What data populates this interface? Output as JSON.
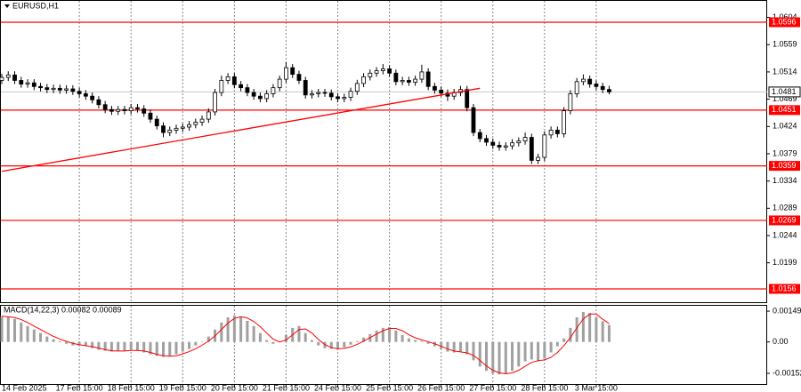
{
  "chart_data": [
    {
      "type": "candlestick",
      "title": "EURUSD,H1",
      "categories": [
        "14 Feb 2025",
        null,
        null,
        null,
        null,
        null,
        null,
        null,
        null,
        null,
        null,
        null,
        "17 Feb 15:00",
        null,
        null,
        null,
        null,
        null,
        null,
        null,
        "18 Feb 15:00",
        null,
        null,
        null,
        null,
        null,
        null,
        null,
        "19 Feb 15:00",
        null,
        null,
        null,
        null,
        null,
        null,
        null,
        "20 Feb 15:00",
        null,
        null,
        null,
        null,
        null,
        null,
        null,
        "21 Feb 15:00",
        null,
        null,
        null,
        null,
        null,
        null,
        null,
        "24 Feb 15:00",
        null,
        null,
        null,
        null,
        null,
        null,
        null,
        "25 Feb 15:00",
        null,
        null,
        null,
        null,
        null,
        null,
        null,
        "26 Feb 15:00",
        null,
        null,
        null,
        null,
        null,
        null,
        null,
        "27 Feb 15:00",
        null,
        null,
        null,
        null,
        null,
        null,
        null,
        "28 Feb 15:00",
        null,
        null,
        null,
        null,
        null,
        null,
        null,
        "3 Mar 15:00",
        null,
        null
      ],
      "open": [
        1.05,
        1.0505,
        1.0509,
        1.05,
        1.0494,
        1.0496,
        1.049,
        1.0488,
        1.0485,
        1.0487,
        1.0484,
        1.0486,
        1.0482,
        1.0478,
        1.0474,
        1.0468,
        1.046,
        1.0452,
        1.0449,
        1.0452,
        1.045,
        1.0455,
        1.0453,
        1.0446,
        1.0436,
        1.0425,
        1.0414,
        1.0418,
        1.0421,
        1.0423,
        1.0427,
        1.0431,
        1.0436,
        1.0448,
        1.048,
        1.05,
        1.0506,
        1.0493,
        1.0488,
        1.048,
        1.0474,
        1.047,
        1.0478,
        1.0488,
        1.0502,
        1.0521,
        1.051,
        1.05,
        1.0476,
        1.0478,
        1.048,
        1.0479,
        1.0473,
        1.047,
        1.0472,
        1.0482,
        1.0495,
        1.0506,
        1.0512,
        1.0516,
        1.0519,
        1.0512,
        1.0498,
        1.05,
        1.0497,
        1.0502,
        1.0514,
        1.049,
        1.0484,
        1.0479,
        1.0474,
        1.048,
        1.0485,
        1.0455,
        1.0414,
        1.0404,
        1.0398,
        1.0393,
        1.039,
        1.0392,
        1.0397,
        1.04,
        1.0406,
        1.0368,
        1.0373,
        1.041,
        1.0418,
        1.0412,
        1.045,
        1.0478,
        1.0498,
        1.0502,
        1.0494,
        1.049,
        1.0485
      ],
      "high": [
        1.0511,
        1.0515,
        1.0515,
        1.0506,
        1.0502,
        1.0502,
        1.0496,
        1.0494,
        1.0493,
        1.0493,
        1.0492,
        1.0492,
        1.0488,
        1.0484,
        1.048,
        1.0474,
        1.0466,
        1.0458,
        1.0458,
        1.0458,
        1.0461,
        1.0461,
        1.0459,
        1.0452,
        1.0442,
        1.0431,
        1.0424,
        1.0427,
        1.0429,
        1.0433,
        1.0437,
        1.0442,
        1.0454,
        1.0486,
        1.0508,
        1.0512,
        1.0512,
        1.0499,
        1.0494,
        1.0486,
        1.048,
        1.0484,
        1.0494,
        1.0508,
        1.053,
        1.0527,
        1.0516,
        1.0506,
        1.0484,
        1.0486,
        1.0486,
        1.0485,
        1.0479,
        1.0478,
        1.0488,
        1.0501,
        1.0512,
        1.0518,
        1.0522,
        1.0527,
        1.0525,
        1.0518,
        1.0506,
        1.0506,
        1.0508,
        1.0526,
        1.052,
        1.0496,
        1.049,
        1.0485,
        1.0486,
        1.0491,
        1.0491,
        1.0461,
        1.042,
        1.041,
        1.0404,
        1.0399,
        1.0398,
        1.0403,
        1.0406,
        1.0414,
        1.0412,
        1.0379,
        1.0416,
        1.0424,
        1.0424,
        1.0456,
        1.0484,
        1.0504,
        1.051,
        1.0508,
        1.05,
        1.0496,
        1.0491
      ],
      "low": [
        1.0494,
        1.0499,
        1.0494,
        1.0488,
        1.0488,
        1.0484,
        1.0482,
        1.0479,
        1.0479,
        1.0478,
        1.0478,
        1.0476,
        1.0472,
        1.0468,
        1.0462,
        1.0454,
        1.0446,
        1.0443,
        1.0443,
        1.0444,
        1.0444,
        1.0447,
        1.044,
        1.043,
        1.0419,
        1.0406,
        1.0408,
        1.0412,
        1.0415,
        1.0417,
        1.0421,
        1.0425,
        1.043,
        1.0442,
        1.0474,
        1.0494,
        1.0487,
        1.0482,
        1.0474,
        1.0468,
        1.0464,
        1.0464,
        1.0472,
        1.0482,
        1.0496,
        1.0504,
        1.0494,
        1.047,
        1.047,
        1.0472,
        1.0473,
        1.0467,
        1.0464,
        1.0464,
        1.0466,
        1.0476,
        1.0489,
        1.05,
        1.0506,
        1.051,
        1.0506,
        1.0492,
        1.0492,
        1.0491,
        1.0491,
        1.0496,
        1.0484,
        1.0478,
        1.0473,
        1.0466,
        1.0468,
        1.0474,
        1.0449,
        1.0408,
        1.0398,
        1.0392,
        1.0387,
        1.0384,
        1.0384,
        1.0386,
        1.0391,
        1.0394,
        1.0362,
        1.0362,
        1.0367,
        1.0404,
        1.0406,
        1.0406,
        1.0444,
        1.0472,
        1.0492,
        1.0488,
        1.0484,
        1.0479,
        1.0477
      ],
      "close": [
        1.0505,
        1.0509,
        1.05,
        1.0494,
        1.0496,
        1.049,
        1.0488,
        1.0485,
        1.0487,
        1.0484,
        1.0486,
        1.0482,
        1.0478,
        1.0474,
        1.0468,
        1.046,
        1.0452,
        1.0449,
        1.0452,
        1.045,
        1.0455,
        1.0453,
        1.0446,
        1.0436,
        1.0425,
        1.0414,
        1.0418,
        1.0421,
        1.0423,
        1.0427,
        1.0431,
        1.0436,
        1.0448,
        1.048,
        1.05,
        1.0506,
        1.0493,
        1.0488,
        1.048,
        1.0474,
        1.047,
        1.0478,
        1.0488,
        1.0502,
        1.0521,
        1.051,
        1.05,
        1.0476,
        1.0478,
        1.048,
        1.0479,
        1.0473,
        1.047,
        1.0472,
        1.0482,
        1.0495,
        1.0506,
        1.0512,
        1.0516,
        1.0519,
        1.0512,
        1.0498,
        1.05,
        1.0497,
        1.0502,
        1.0514,
        1.049,
        1.0484,
        1.0479,
        1.0474,
        1.048,
        1.0485,
        1.0455,
        1.0414,
        1.0404,
        1.0398,
        1.0393,
        1.039,
        1.0392,
        1.0397,
        1.04,
        1.0406,
        1.0368,
        1.0373,
        1.041,
        1.0418,
        1.0412,
        1.045,
        1.0478,
        1.0498,
        1.0502,
        1.0494,
        1.049,
        1.0485,
        1.0481
      ],
      "up_color": "#ffffff",
      "down_color": "#000000",
      "wick_color": "#000000",
      "ylim": [
        1.01325,
        1.06327
      ],
      "yticks": [
        1.0604,
        1.0559,
        1.0514,
        1.0469,
        1.0424,
        1.0379,
        1.0334,
        1.0289,
        1.0244,
        1.0199
      ],
      "levels": {
        "values": [
          1.0596,
          1.0451,
          1.0359,
          1.0269,
          1.0156
        ],
        "color": "#ff0000"
      },
      "last_price": 1.0481,
      "trendline": {
        "x": [
          0,
          74
        ],
        "y": [
          1.035,
          1.0487
        ],
        "color": "#ff0000"
      }
    },
    {
      "type": "macd",
      "title": "MACD(14,22,3) 0.00082 0.00089",
      "values": [
        0.00123,
        0.00119,
        0.00111,
        0.00094,
        0.00077,
        0.0006,
        0.00043,
        0.00026,
        0.00013,
        4e-05,
        -9e-05,
        -0.00017,
        -0.00017,
        -0.00021,
        -0.0003,
        -0.00038,
        -0.00043,
        -0.00047,
        -0.00043,
        -0.00043,
        -0.00038,
        -0.00043,
        -0.00051,
        -0.0006,
        -0.00068,
        -0.00072,
        -0.00068,
        -0.0006,
        -0.00047,
        -0.00034,
        -0.00017,
        2e-05,
        0.00026,
        0.0006,
        0.00094,
        0.00119,
        0.00128,
        0.00119,
        0.00102,
        0.00077,
        0.00043,
        9e-05,
        -9e-05,
        1e-05,
        0.00034,
        0.00068,
        0.00077,
        0.00043,
        9e-05,
        -0.00017,
        -0.0003,
        -0.00034,
        -0.00034,
        -0.00026,
        -0.00013,
        4e-05,
        0.00021,
        0.00038,
        0.00055,
        0.00068,
        0.00072,
        0.00055,
        0.00034,
        0.00017,
        9e-05,
        4e-05,
        -9e-05,
        -0.00021,
        -0.00034,
        -0.00047,
        -0.00051,
        -0.00047,
        -0.0006,
        -0.00089,
        -0.00119,
        -0.0014,
        -0.00153,
        -0.00157,
        -0.00153,
        -0.0014,
        -0.00119,
        -0.00094,
        -0.00085,
        -0.00094,
        -0.00081,
        -0.00051,
        -0.00021,
        0.00017,
        0.00068,
        0.00119,
        0.00145,
        0.0014,
        0.0012,
        0.001,
        0.00082
      ],
      "signal": [
        0.00125,
        0.00122,
        0.00118,
        0.00108,
        0.00094,
        0.00077,
        0.0006,
        0.00043,
        0.00027,
        0.00014,
        3e-05,
        -7e-05,
        -0.00014,
        -0.00018,
        -0.00023,
        -0.0003,
        -0.00037,
        -0.00043,
        -0.00044,
        -0.00044,
        -0.00041,
        -0.00041,
        -0.00044,
        -0.00051,
        -0.0006,
        -0.00067,
        -0.00069,
        -0.00067,
        -0.00058,
        -0.00047,
        -0.00033,
        -0.00016,
        4e-05,
        0.00029,
        0.0006,
        0.00091,
        0.00114,
        0.00122,
        0.00116,
        0.00099,
        0.00074,
        0.00043,
        0.00014,
        0,
        9e-05,
        0.00034,
        0.0006,
        0.00063,
        0.00043,
        0.00012,
        -0.00013,
        -0.00027,
        -0.00033,
        -0.00031,
        -0.00024,
        -0.00012,
        4e-05,
        0.00021,
        0.00038,
        0.00054,
        0.00065,
        0.00065,
        0.00054,
        0.00035,
        0.0002,
        0.0001,
        1e-05,
        -9e-05,
        -0.00021,
        -0.00034,
        -0.00044,
        -0.00048,
        -0.00053,
        -0.00065,
        -0.00089,
        -0.00116,
        -0.00137,
        -0.0015,
        -0.00154,
        -0.0015,
        -0.00137,
        -0.00118,
        -0.00099,
        -0.00091,
        -0.00087,
        -0.00075,
        -0.00051,
        -0.00018,
        0.00021,
        0.00068,
        0.00111,
        0.00135,
        0.00135,
        0.0011,
        0.00089
      ],
      "color": "#a0a0a0",
      "signal_color": "#ff0000",
      "ylim": [
        -0.00208,
        0.00175
      ],
      "yticks": [
        0.00149,
        {
          "value": 0,
          "label": "0.00"
        },
        -0.00152
      ]
    }
  ]
}
